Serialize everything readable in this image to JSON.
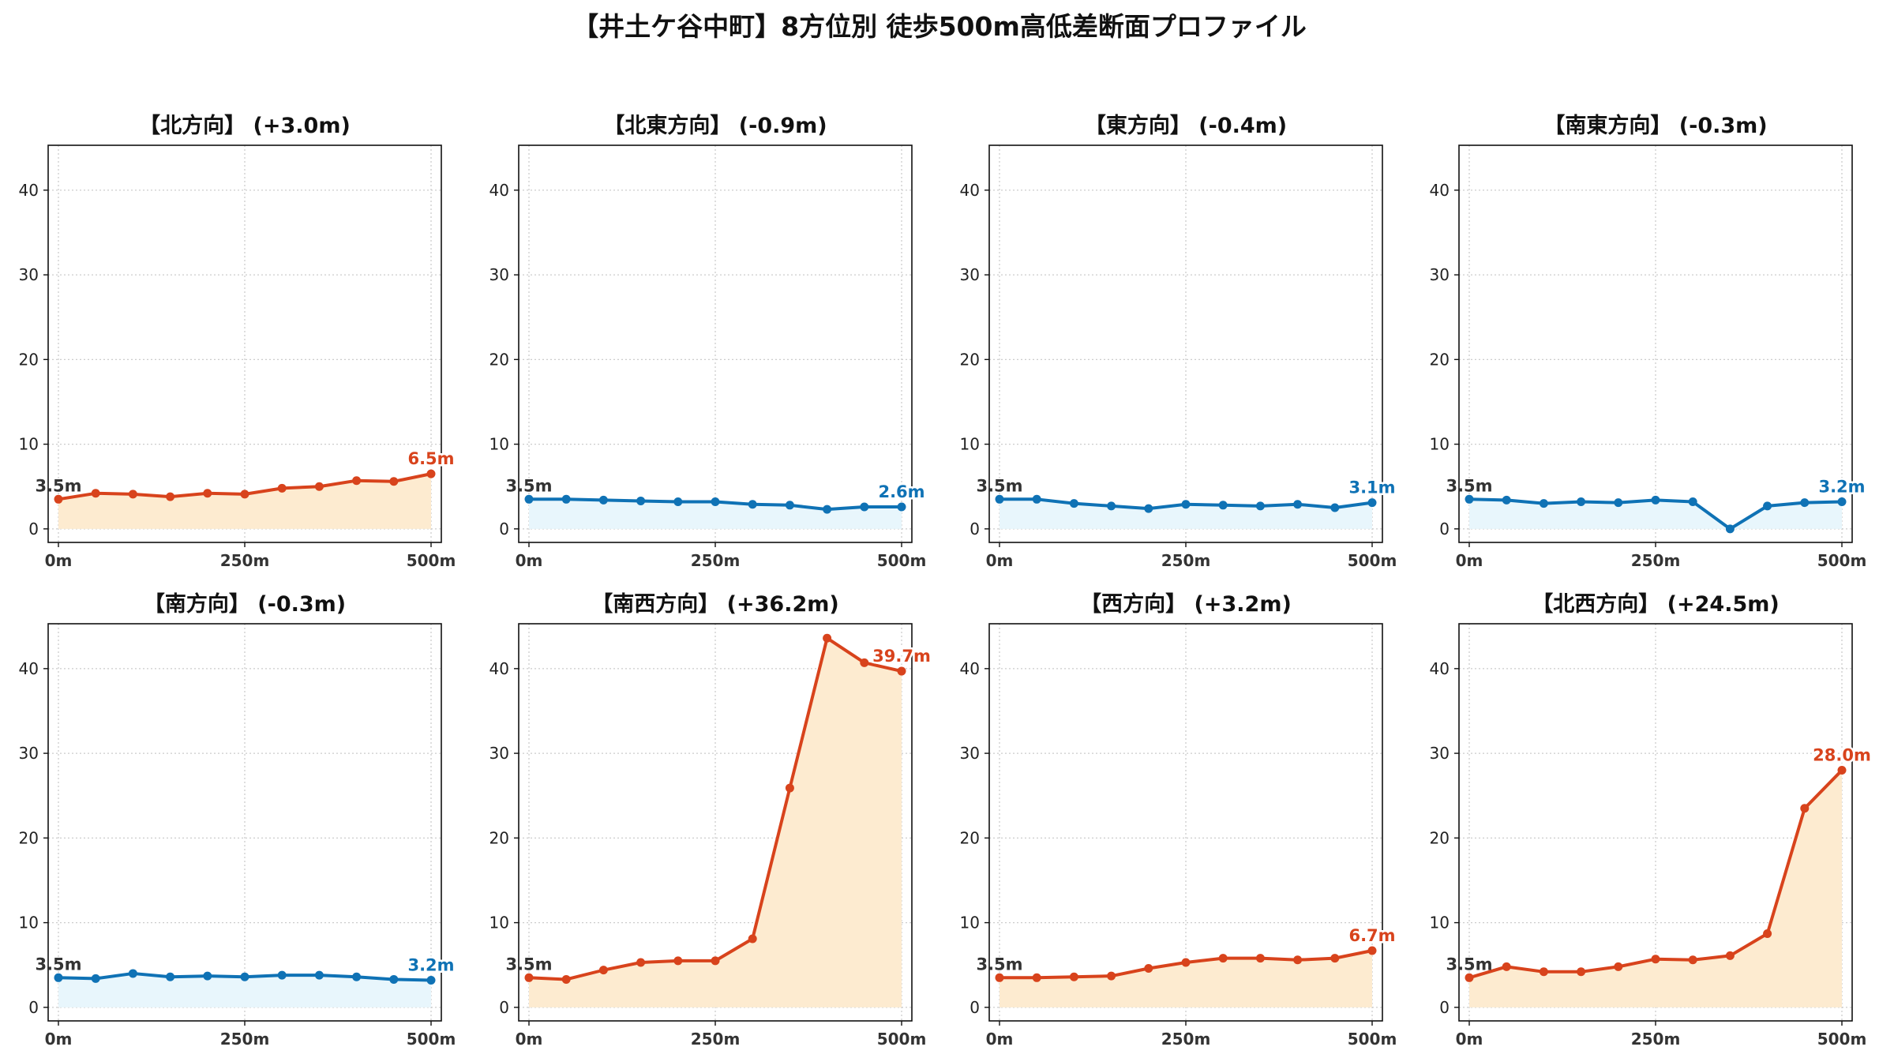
{
  "title": "【井土ケ谷中町】8方位別 徒歩500m高低差断面プロファイル",
  "colors": {
    "up_line": "#d8431c",
    "up_fill": "#fdebd0",
    "down_line": "#0f72b5",
    "down_fill": "#e8f6fc",
    "start_label": "#333333",
    "grid": "#cccccc"
  },
  "chart_data": [
    {
      "type": "area",
      "title": "【北方向】 (+3.0m)",
      "trend": "up",
      "xtick_labels": [
        "0m",
        "250m",
        "500m"
      ],
      "xlim": [
        0,
        500
      ],
      "ylim": [
        -1.6,
        45.3
      ],
      "yticks": [
        0,
        10,
        20,
        30,
        40
      ],
      "grid": true,
      "x": [
        0,
        50,
        100,
        150,
        200,
        250,
        300,
        350,
        400,
        450,
        500
      ],
      "values": [
        3.5,
        4.2,
        4.1,
        3.8,
        4.2,
        4.1,
        4.8,
        5.0,
        5.7,
        5.6,
        6.5
      ],
      "start_label": "3.5m",
      "end_label": "6.5m"
    },
    {
      "type": "area",
      "title": "【北東方向】 (-0.9m)",
      "trend": "down",
      "xtick_labels": [
        "0m",
        "250m",
        "500m"
      ],
      "xlim": [
        0,
        500
      ],
      "ylim": [
        -1.6,
        45.3
      ],
      "yticks": [
        0,
        10,
        20,
        30,
        40
      ],
      "grid": true,
      "x": [
        0,
        50,
        100,
        150,
        200,
        250,
        300,
        350,
        400,
        450,
        500
      ],
      "values": [
        3.5,
        3.5,
        3.4,
        3.3,
        3.2,
        3.2,
        2.9,
        2.8,
        2.3,
        2.6,
        2.6
      ],
      "start_label": "3.5m",
      "end_label": "2.6m"
    },
    {
      "type": "area",
      "title": "【東方向】 (-0.4m)",
      "trend": "down",
      "xtick_labels": [
        "0m",
        "250m",
        "500m"
      ],
      "xlim": [
        0,
        500
      ],
      "ylim": [
        -1.6,
        45.3
      ],
      "yticks": [
        0,
        10,
        20,
        30,
        40
      ],
      "grid": true,
      "x": [
        0,
        50,
        100,
        150,
        200,
        250,
        300,
        350,
        400,
        450,
        500
      ],
      "values": [
        3.5,
        3.5,
        3.0,
        2.7,
        2.4,
        2.9,
        2.8,
        2.7,
        2.9,
        2.5,
        3.1
      ],
      "start_label": "3.5m",
      "end_label": "3.1m"
    },
    {
      "type": "area",
      "title": "【南東方向】 (-0.3m)",
      "trend": "down",
      "xtick_labels": [
        "0m",
        "250m",
        "500m"
      ],
      "xlim": [
        0,
        500
      ],
      "ylim": [
        -1.6,
        45.3
      ],
      "yticks": [
        0,
        10,
        20,
        30,
        40
      ],
      "grid": true,
      "x": [
        0,
        50,
        100,
        150,
        200,
        250,
        300,
        350,
        400,
        450,
        500
      ],
      "values": [
        3.5,
        3.4,
        3.0,
        3.2,
        3.1,
        3.4,
        3.2,
        0.0,
        2.7,
        3.1,
        3.2
      ],
      "start_label": "3.5m",
      "end_label": "3.2m"
    },
    {
      "type": "area",
      "title": "【南方向】 (-0.3m)",
      "trend": "down",
      "xtick_labels": [
        "0m",
        "250m",
        "500m"
      ],
      "xlim": [
        0,
        500
      ],
      "ylim": [
        -1.6,
        45.3
      ],
      "yticks": [
        0,
        10,
        20,
        30,
        40
      ],
      "grid": true,
      "x": [
        0,
        50,
        100,
        150,
        200,
        250,
        300,
        350,
        400,
        450,
        500
      ],
      "values": [
        3.5,
        3.4,
        4.0,
        3.6,
        3.7,
        3.6,
        3.8,
        3.8,
        3.6,
        3.3,
        3.2
      ],
      "start_label": "3.5m",
      "end_label": "3.2m"
    },
    {
      "type": "area",
      "title": "【南西方向】 (+36.2m)",
      "trend": "up",
      "xtick_labels": [
        "0m",
        "250m",
        "500m"
      ],
      "xlim": [
        0,
        500
      ],
      "ylim": [
        -1.6,
        45.3
      ],
      "yticks": [
        0,
        10,
        20,
        30,
        40
      ],
      "grid": true,
      "x": [
        0,
        50,
        100,
        150,
        200,
        250,
        300,
        350,
        400,
        450,
        500
      ],
      "values": [
        3.5,
        3.3,
        4.4,
        5.3,
        5.5,
        5.5,
        8.1,
        25.9,
        43.6,
        40.7,
        39.7
      ],
      "start_label": "3.5m",
      "end_label": "39.7m"
    },
    {
      "type": "area",
      "title": "【西方向】 (+3.2m)",
      "trend": "up",
      "xtick_labels": [
        "0m",
        "250m",
        "500m"
      ],
      "xlim": [
        0,
        500
      ],
      "ylim": [
        -1.6,
        45.3
      ],
      "yticks": [
        0,
        10,
        20,
        30,
        40
      ],
      "grid": true,
      "x": [
        0,
        50,
        100,
        150,
        200,
        250,
        300,
        350,
        400,
        450,
        500
      ],
      "values": [
        3.5,
        3.5,
        3.6,
        3.7,
        4.6,
        5.3,
        5.8,
        5.8,
        5.6,
        5.8,
        6.7
      ],
      "start_label": "3.5m",
      "end_label": "6.7m"
    },
    {
      "type": "area",
      "title": "【北西方向】 (+24.5m)",
      "trend": "up",
      "xtick_labels": [
        "0m",
        "250m",
        "500m"
      ],
      "xlim": [
        0,
        500
      ],
      "ylim": [
        -1.6,
        45.3
      ],
      "yticks": [
        0,
        10,
        20,
        30,
        40
      ],
      "grid": true,
      "x": [
        0,
        50,
        100,
        150,
        200,
        250,
        300,
        350,
        400,
        450,
        500
      ],
      "values": [
        3.5,
        4.8,
        4.2,
        4.2,
        4.8,
        5.7,
        5.6,
        6.1,
        8.7,
        23.5,
        28.0
      ],
      "start_label": "3.5m",
      "end_label": "28.0m"
    }
  ]
}
